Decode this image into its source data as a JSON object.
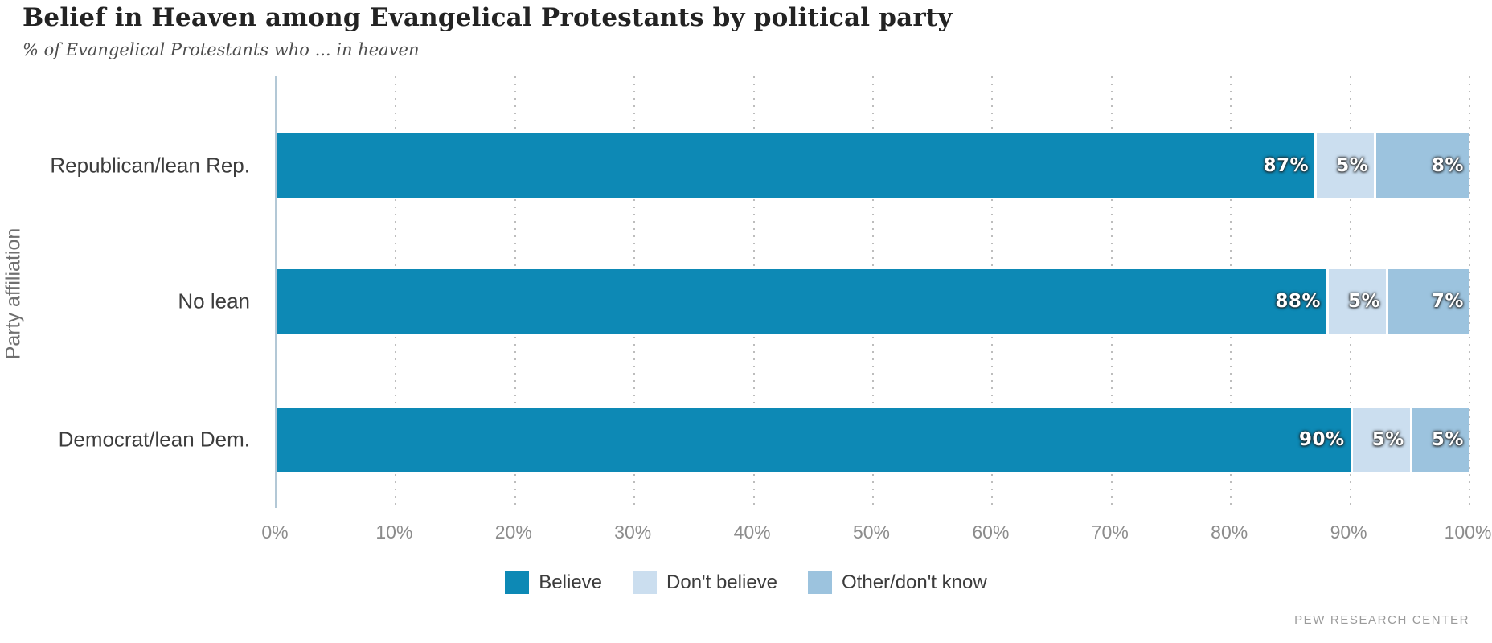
{
  "header": {
    "title": "Belief in Heaven among Evangelical Protestants by political party",
    "subtitle": "% of Evangelical Protestants who ... in heaven"
  },
  "chart_data": {
    "type": "bar",
    "orientation": "horizontal",
    "stacked": true,
    "title": "Belief in Heaven among Evangelical Protestants by political party",
    "xlabel": "",
    "ylabel": "Party affiliation",
    "categories": [
      "Republican/lean Rep.",
      "No lean",
      "Democrat/lean Dem."
    ],
    "series": [
      {
        "name": "Believe",
        "color": "#0d89b5",
        "values": [
          87,
          88,
          90
        ]
      },
      {
        "name": "Don't believe",
        "color": "#cbdeef",
        "values": [
          5,
          5,
          5
        ]
      },
      {
        "name": "Other/don't know",
        "color": "#9cc3de",
        "values": [
          8,
          7,
          5
        ]
      }
    ],
    "value_label_suffix": "%",
    "xlim": [
      0,
      100
    ],
    "x_ticks": [
      "0%",
      "10%",
      "20%",
      "30%",
      "40%",
      "50%",
      "60%",
      "70%",
      "80%",
      "90%",
      "100%"
    ],
    "grid": true,
    "legend_position": "bottom"
  },
  "footer": {
    "source": "PEW RESEARCH CENTER"
  },
  "style": {
    "grid_color": "#bdbdbd",
    "axis_line_color": "#b3c8d6",
    "value_label_color": "#ffffff"
  }
}
